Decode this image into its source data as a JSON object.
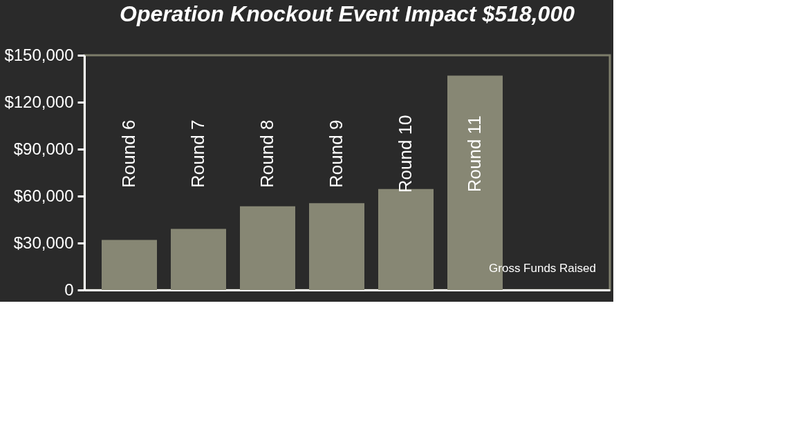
{
  "chart_data": {
    "type": "bar",
    "title": "Operation Knockout Event Impact $518,000",
    "xlabel": "Gross Funds Raised",
    "categories": [
      "Round 6",
      "Round 7",
      "Round 8",
      "Round 9",
      "Round 10",
      "Round 11"
    ],
    "values": [
      32000,
      39000,
      53500,
      55500,
      64500,
      137000
    ],
    "color": "#878774",
    "ylim": [
      0,
      150000
    ],
    "yticks": [
      {
        "value": 0,
        "label": "0"
      },
      {
        "value": 30000,
        "label": "$30,000"
      },
      {
        "value": 60000,
        "label": "$60,000"
      },
      {
        "value": 90000,
        "label": "$90,000"
      },
      {
        "value": 120000,
        "label": "$120,000"
      },
      {
        "value": 150000,
        "label": "$150,000"
      }
    ],
    "grid": false
  }
}
